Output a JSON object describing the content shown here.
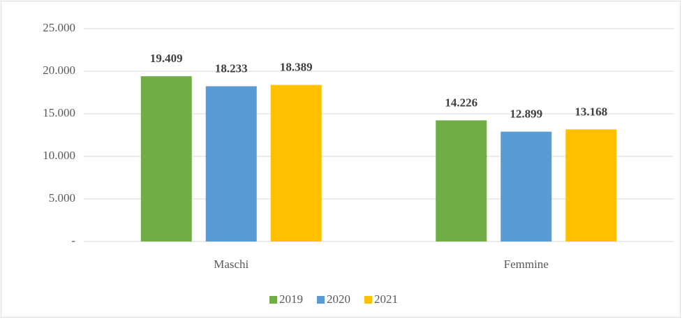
{
  "chart_data": {
    "type": "bar",
    "categories": [
      "Maschi",
      "Femmine"
    ],
    "series": [
      {
        "name": "2019",
        "color": "#70ad47",
        "values": [
          19409,
          14226
        ],
        "value_labels": [
          "19.409",
          "14.226"
        ]
      },
      {
        "name": "2020",
        "color": "#5b9bd5",
        "values": [
          18233,
          12899
        ],
        "value_labels": [
          "18.233",
          "12.899"
        ]
      },
      {
        "name": "2021",
        "color": "#ffc000",
        "values": [
          18389,
          13168
        ],
        "value_labels": [
          "18.389",
          "13.168"
        ]
      }
    ],
    "ylim": [
      0,
      25000
    ],
    "yticks": [
      {
        "value": 0,
        "label": "-"
      },
      {
        "value": 5000,
        "label": "5.000"
      },
      {
        "value": 10000,
        "label": "10.000"
      },
      {
        "value": 15000,
        "label": "15.000"
      },
      {
        "value": 20000,
        "label": "20.000"
      },
      {
        "value": 25000,
        "label": "25.000"
      }
    ],
    "grid": true,
    "legend": "bottom"
  }
}
